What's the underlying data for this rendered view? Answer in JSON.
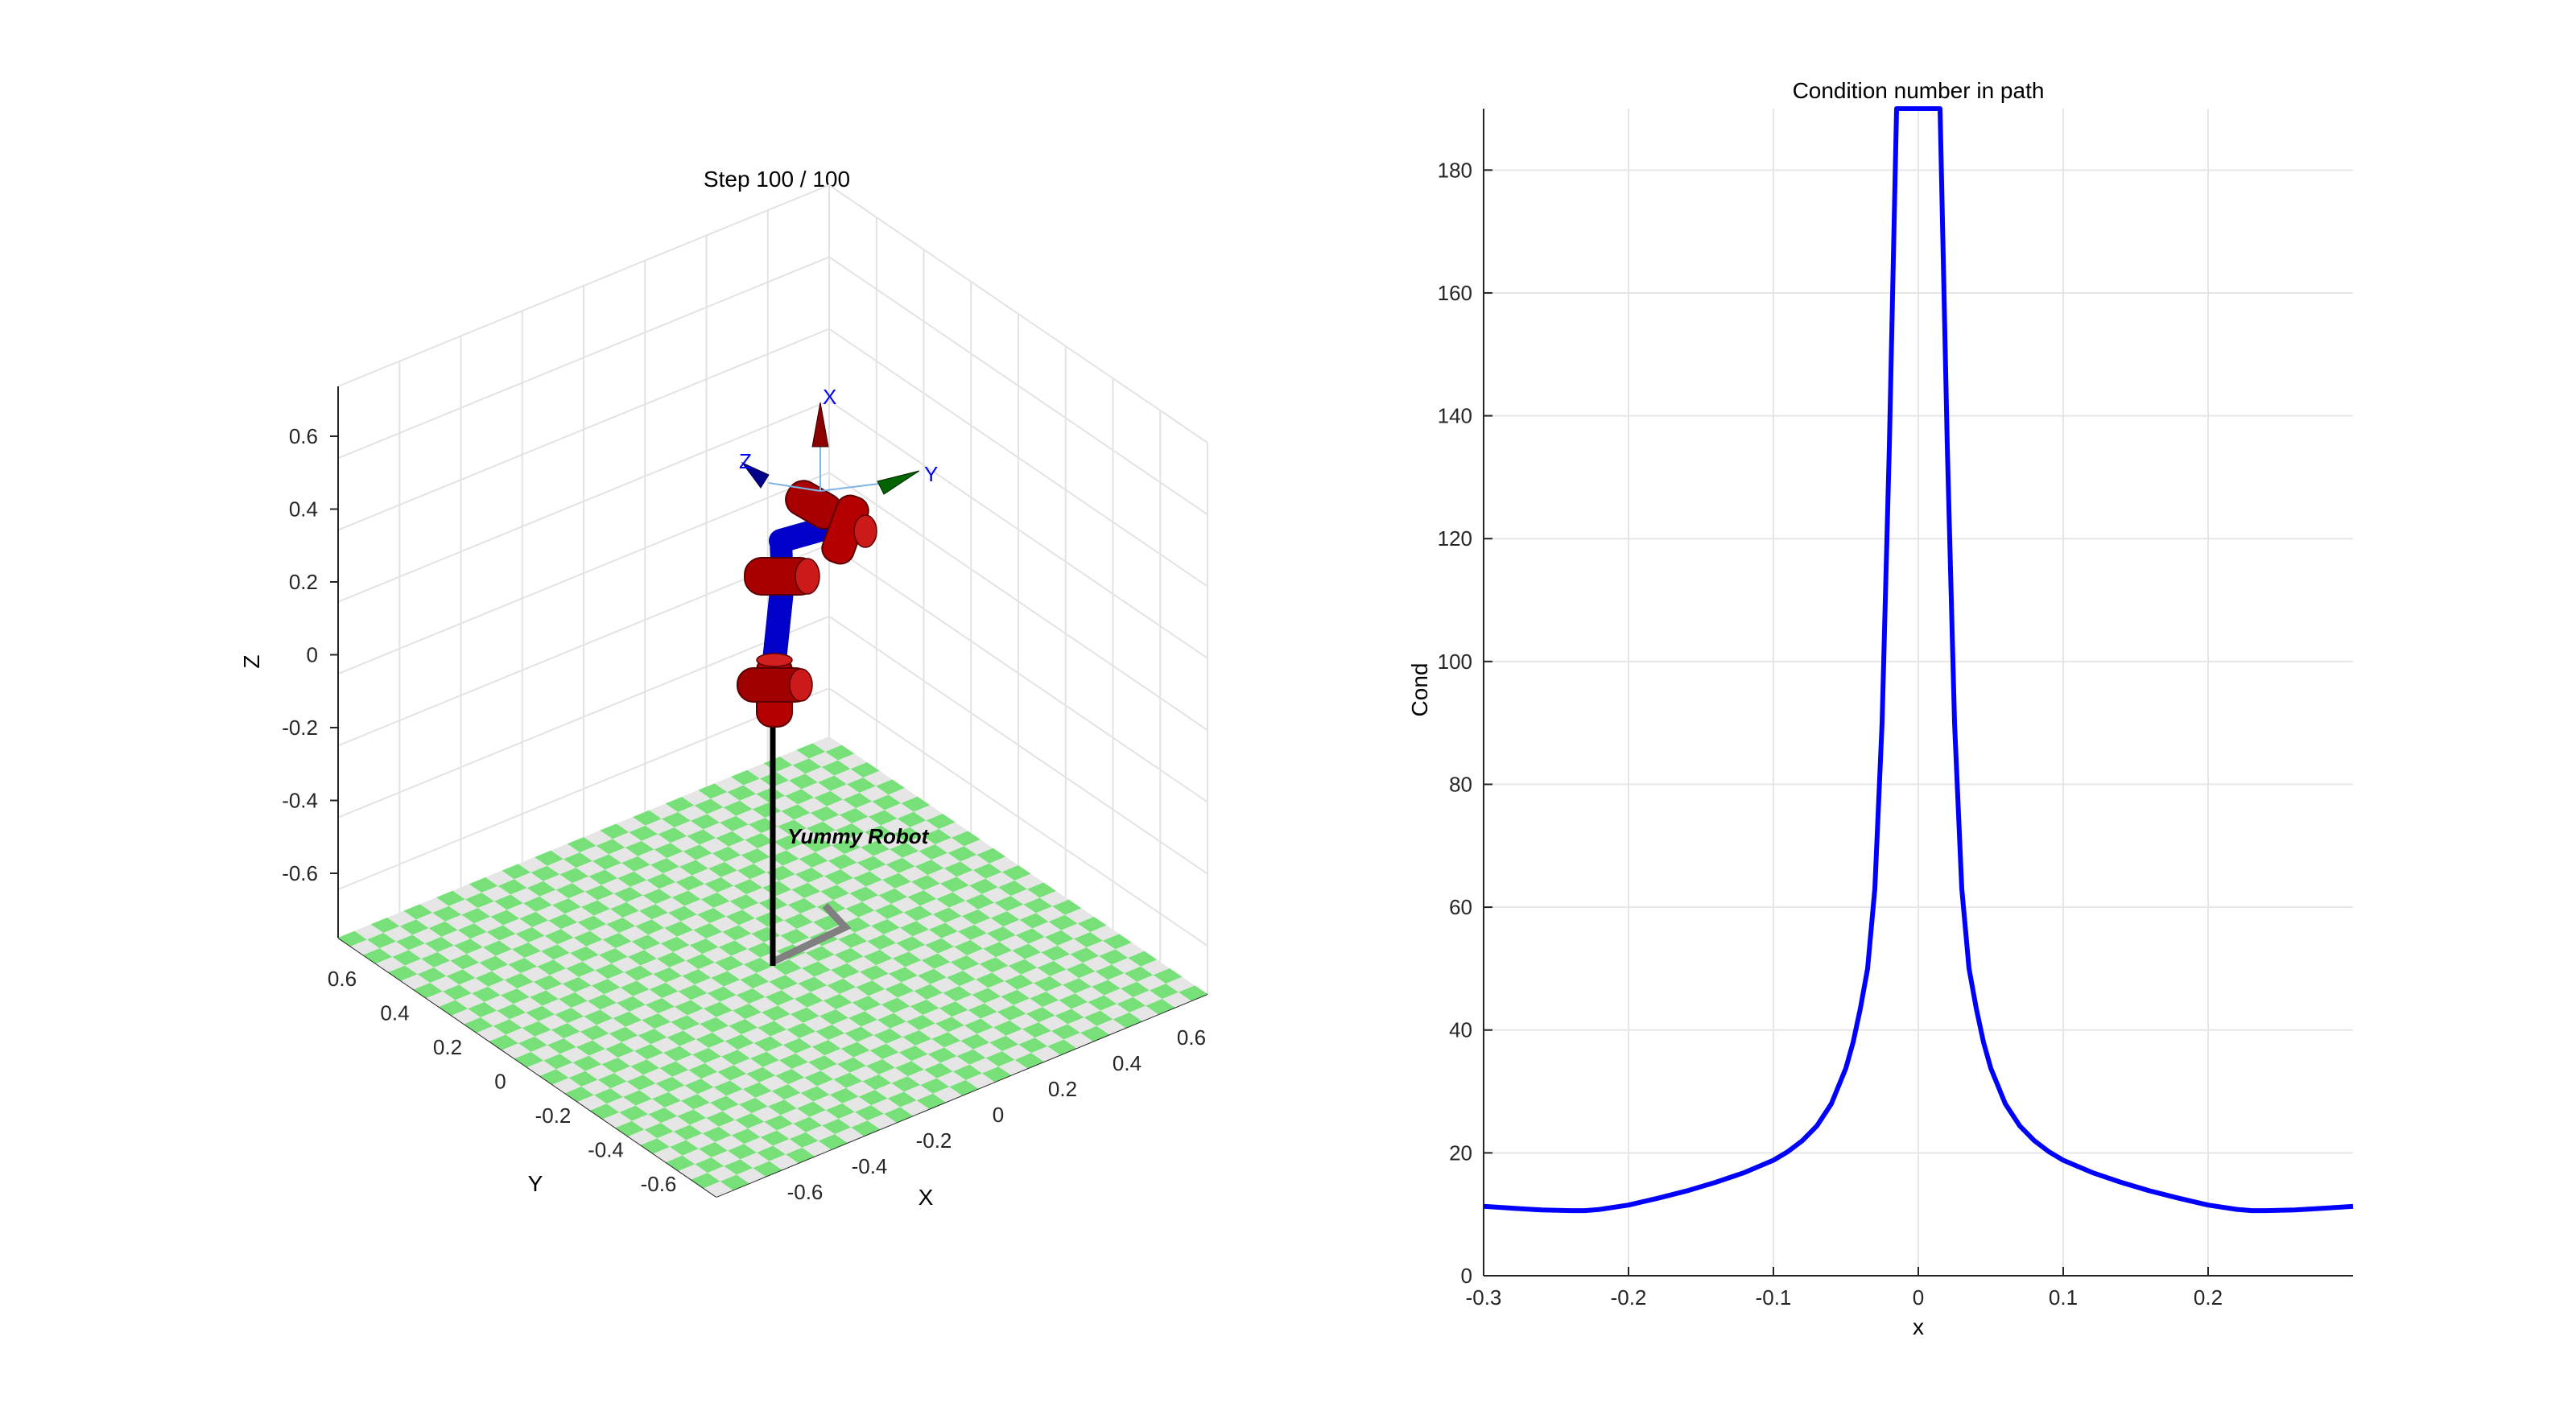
{
  "left_plot": {
    "title": "Step 100 / 100",
    "axis_x_label": "X",
    "axis_y_label": "Y",
    "axis_z_label": "Z",
    "x_ticks": [
      "-0.6",
      "-0.4",
      "-0.2",
      "0",
      "0.2",
      "0.4",
      "0.6"
    ],
    "y_ticks": [
      "-0.6",
      "-0.4",
      "-0.2",
      "0",
      "0.2",
      "0.4",
      "0.6"
    ],
    "z_ticks": [
      "-0.6",
      "-0.4",
      "-0.2",
      "0",
      "0.2",
      "0.4",
      "0.6"
    ],
    "robot_name": "Yummy Robot",
    "frame_label_x": "X",
    "frame_label_y": "Y",
    "frame_label_z": "Z",
    "colors": {
      "floor_green": "#78e078",
      "floor_gray": "#e6e6e6",
      "link_blue": "#0000c8",
      "joint_red": "#b40000",
      "arrow_x": "#8b0000",
      "arrow_y": "#006400",
      "arrow_z": "#00008b",
      "frame_label": "#0000ff",
      "base_pole": "#000000",
      "base_frame": "#808080"
    }
  },
  "chart_data": {
    "type": "line",
    "title": "Condition number in path",
    "xlabel": "x",
    "ylabel": "Cond",
    "xlim": [
      -0.3,
      0.3
    ],
    "ylim": [
      0,
      190
    ],
    "x_ticks": [
      -0.3,
      -0.2,
      -0.1,
      0,
      0.1,
      0.2
    ],
    "y_ticks": [
      0,
      20,
      40,
      60,
      80,
      100,
      120,
      140,
      160,
      180
    ],
    "grid": true,
    "color": "#0000ff",
    "x": [
      -0.3,
      -0.28,
      -0.26,
      -0.24,
      -0.23,
      -0.22,
      -0.2,
      -0.18,
      -0.16,
      -0.14,
      -0.12,
      -0.1,
      -0.09,
      -0.08,
      -0.07,
      -0.06,
      -0.05,
      -0.045,
      -0.04,
      -0.035,
      -0.03,
      -0.025,
      -0.02,
      -0.015,
      -0.01,
      -0.005,
      -0.002,
      0,
      0.002,
      0.005,
      0.01,
      0.015,
      0.02,
      0.025,
      0.03,
      0.035,
      0.04,
      0.045,
      0.05,
      0.06,
      0.07,
      0.08,
      0.09,
      0.1,
      0.12,
      0.14,
      0.16,
      0.18,
      0.2,
      0.22,
      0.23,
      0.24,
      0.26,
      0.28,
      0.3
    ],
    "y": [
      11.3,
      11.0,
      10.7,
      10.6,
      10.6,
      10.8,
      11.5,
      12.6,
      13.8,
      15.2,
      16.8,
      18.8,
      20.2,
      22.0,
      24.4,
      28.0,
      33.8,
      38.0,
      43.5,
      50.0,
      63.0,
      90.0,
      135.0,
      190.0,
      190.0,
      190.0,
      190.0,
      190.0,
      190.0,
      190.0,
      190.0,
      190.0,
      135.0,
      90.0,
      63.0,
      50.0,
      43.5,
      38.0,
      33.8,
      28.0,
      24.4,
      22.0,
      20.2,
      18.8,
      16.8,
      15.2,
      13.8,
      12.6,
      11.5,
      10.8,
      10.6,
      10.6,
      10.7,
      11.0,
      11.3
    ]
  }
}
